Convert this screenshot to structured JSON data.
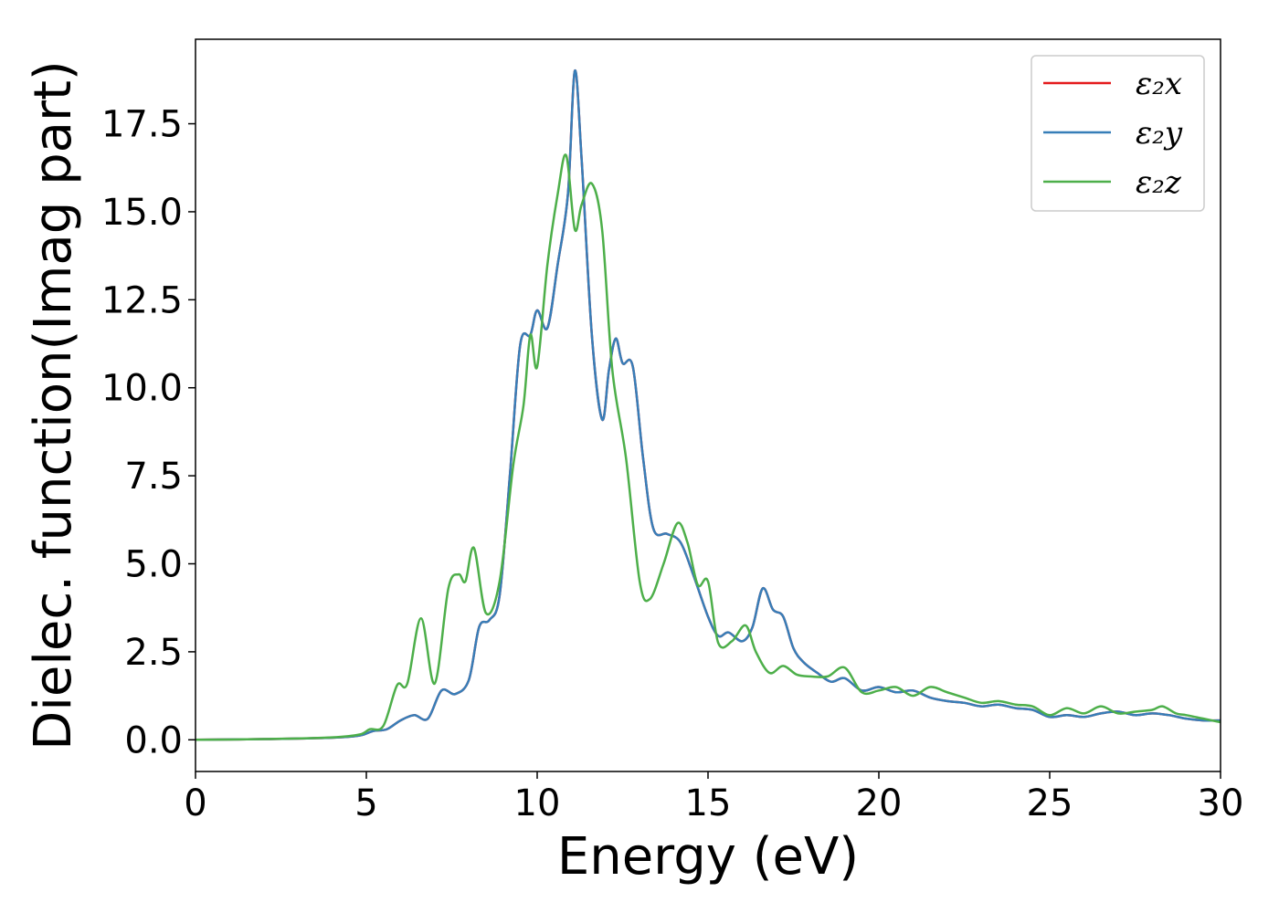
{
  "chart_data": {
    "type": "line",
    "title": "",
    "xlabel": "Energy (eV)",
    "ylabel": "Dielec. function(Imag part)",
    "xlim": [
      0,
      30
    ],
    "ylim": [
      -0.9,
      19.9
    ],
    "xticks": [
      0,
      5,
      10,
      15,
      20,
      25,
      30
    ],
    "xtick_labels": [
      "0",
      "5",
      "10",
      "15",
      "20",
      "25",
      "30"
    ],
    "yticks": [
      0,
      2.5,
      5,
      7.5,
      10,
      12.5,
      15,
      17.5
    ],
    "ytick_labels": [
      "0.0",
      "2.5",
      "5.0",
      "7.5",
      "10.0",
      "12.5",
      "15.0",
      "17.5"
    ],
    "grid": false,
    "legend_position": "top-right",
    "series": [
      {
        "name": "ε₂x",
        "color": "#e41a1c",
        "x": [
          0,
          2,
          4,
          4.8,
          5.2,
          5.6,
          6.0,
          6.4,
          6.8,
          7.2,
          7.6,
          8.0,
          8.3,
          8.6,
          8.9,
          9.2,
          9.5,
          9.8,
          10.0,
          10.3,
          10.6,
          10.9,
          11.1,
          11.3,
          11.6,
          11.9,
          12.1,
          12.3,
          12.5,
          12.8,
          13.1,
          13.4,
          13.8,
          14.2,
          14.6,
          15.0,
          15.3,
          15.6,
          16.0,
          16.3,
          16.6,
          16.9,
          17.2,
          17.5,
          17.8,
          18.2,
          18.6,
          19.0,
          19.5,
          20.0,
          20.5,
          21.0,
          21.5,
          22.0,
          22.5,
          23.0,
          23.5,
          24.0,
          24.5,
          25.0,
          25.5,
          26.0,
          26.5,
          27.0,
          27.5,
          28.0,
          28.5,
          29.0,
          29.5,
          30.0
        ],
        "y": [
          0.0,
          0.02,
          0.06,
          0.12,
          0.25,
          0.3,
          0.55,
          0.7,
          0.6,
          1.4,
          1.3,
          1.7,
          3.2,
          3.4,
          4.1,
          7.5,
          11.2,
          11.5,
          12.2,
          11.7,
          13.5,
          15.5,
          19.0,
          16.5,
          11.5,
          9.1,
          10.5,
          11.4,
          10.7,
          10.6,
          8.0,
          6.0,
          5.85,
          5.6,
          4.6,
          3.5,
          2.95,
          3.05,
          2.8,
          3.2,
          4.3,
          3.7,
          3.5,
          2.6,
          2.2,
          1.9,
          1.65,
          1.75,
          1.4,
          1.5,
          1.35,
          1.4,
          1.2,
          1.1,
          1.05,
          0.95,
          1.0,
          0.9,
          0.85,
          0.65,
          0.7,
          0.65,
          0.75,
          0.8,
          0.7,
          0.75,
          0.7,
          0.6,
          0.55,
          0.55
        ]
      },
      {
        "name": "ε₂y",
        "color": "#377eb8",
        "x": [
          0,
          2,
          4,
          4.8,
          5.2,
          5.6,
          6.0,
          6.4,
          6.8,
          7.2,
          7.6,
          8.0,
          8.3,
          8.6,
          8.9,
          9.2,
          9.5,
          9.8,
          10.0,
          10.3,
          10.6,
          10.9,
          11.1,
          11.3,
          11.6,
          11.9,
          12.1,
          12.3,
          12.5,
          12.8,
          13.1,
          13.4,
          13.8,
          14.2,
          14.6,
          15.0,
          15.3,
          15.6,
          16.0,
          16.3,
          16.6,
          16.9,
          17.2,
          17.5,
          17.8,
          18.2,
          18.6,
          19.0,
          19.5,
          20.0,
          20.5,
          21.0,
          21.5,
          22.0,
          22.5,
          23.0,
          23.5,
          24.0,
          24.5,
          25.0,
          25.5,
          26.0,
          26.5,
          27.0,
          27.5,
          28.0,
          28.5,
          29.0,
          29.5,
          30.0
        ],
        "y": [
          0.0,
          0.02,
          0.06,
          0.12,
          0.25,
          0.3,
          0.55,
          0.7,
          0.6,
          1.4,
          1.3,
          1.7,
          3.2,
          3.4,
          4.1,
          7.5,
          11.2,
          11.5,
          12.2,
          11.7,
          13.5,
          15.5,
          19.0,
          16.5,
          11.5,
          9.1,
          10.5,
          11.4,
          10.7,
          10.6,
          8.0,
          6.0,
          5.85,
          5.6,
          4.6,
          3.5,
          2.95,
          3.05,
          2.8,
          3.2,
          4.3,
          3.7,
          3.5,
          2.6,
          2.2,
          1.9,
          1.65,
          1.75,
          1.4,
          1.5,
          1.35,
          1.4,
          1.2,
          1.1,
          1.05,
          0.95,
          1.0,
          0.9,
          0.85,
          0.65,
          0.7,
          0.65,
          0.75,
          0.8,
          0.7,
          0.75,
          0.7,
          0.6,
          0.55,
          0.55
        ]
      },
      {
        "name": "ε₂z",
        "color": "#4daf4a",
        "x": [
          0,
          2,
          4,
          4.8,
          5.1,
          5.5,
          5.9,
          6.2,
          6.6,
          7.0,
          7.4,
          7.7,
          7.9,
          8.15,
          8.5,
          8.9,
          9.3,
          9.6,
          9.8,
          10.0,
          10.3,
          10.6,
          10.85,
          11.1,
          11.3,
          11.6,
          11.9,
          12.2,
          12.6,
          13.0,
          13.3,
          13.7,
          14.1,
          14.4,
          14.7,
          15.0,
          15.3,
          15.7,
          16.1,
          16.4,
          16.8,
          17.2,
          17.6,
          18.0,
          18.5,
          19.0,
          19.5,
          20.0,
          20.5,
          21.0,
          21.5,
          22.0,
          22.5,
          23.0,
          23.5,
          24.0,
          24.5,
          25.0,
          25.5,
          26.0,
          26.5,
          27.0,
          27.5,
          28.0,
          28.3,
          28.7,
          29.0,
          29.5,
          30.0
        ],
        "y": [
          0.0,
          0.02,
          0.07,
          0.15,
          0.3,
          0.4,
          1.55,
          1.6,
          3.45,
          1.6,
          4.3,
          4.7,
          4.5,
          5.45,
          3.6,
          4.5,
          7.8,
          9.5,
          11.5,
          10.6,
          13.5,
          15.5,
          16.6,
          14.5,
          15.2,
          15.8,
          14.5,
          10.5,
          8.0,
          4.5,
          4.0,
          5.0,
          6.15,
          5.6,
          4.4,
          4.5,
          2.75,
          2.8,
          3.25,
          2.5,
          1.9,
          2.1,
          1.85,
          1.8,
          1.8,
          2.05,
          1.35,
          1.4,
          1.5,
          1.25,
          1.5,
          1.35,
          1.2,
          1.05,
          1.1,
          1.0,
          0.95,
          0.7,
          0.9,
          0.75,
          0.95,
          0.75,
          0.8,
          0.85,
          0.95,
          0.75,
          0.7,
          0.6,
          0.5
        ]
      }
    ]
  }
}
